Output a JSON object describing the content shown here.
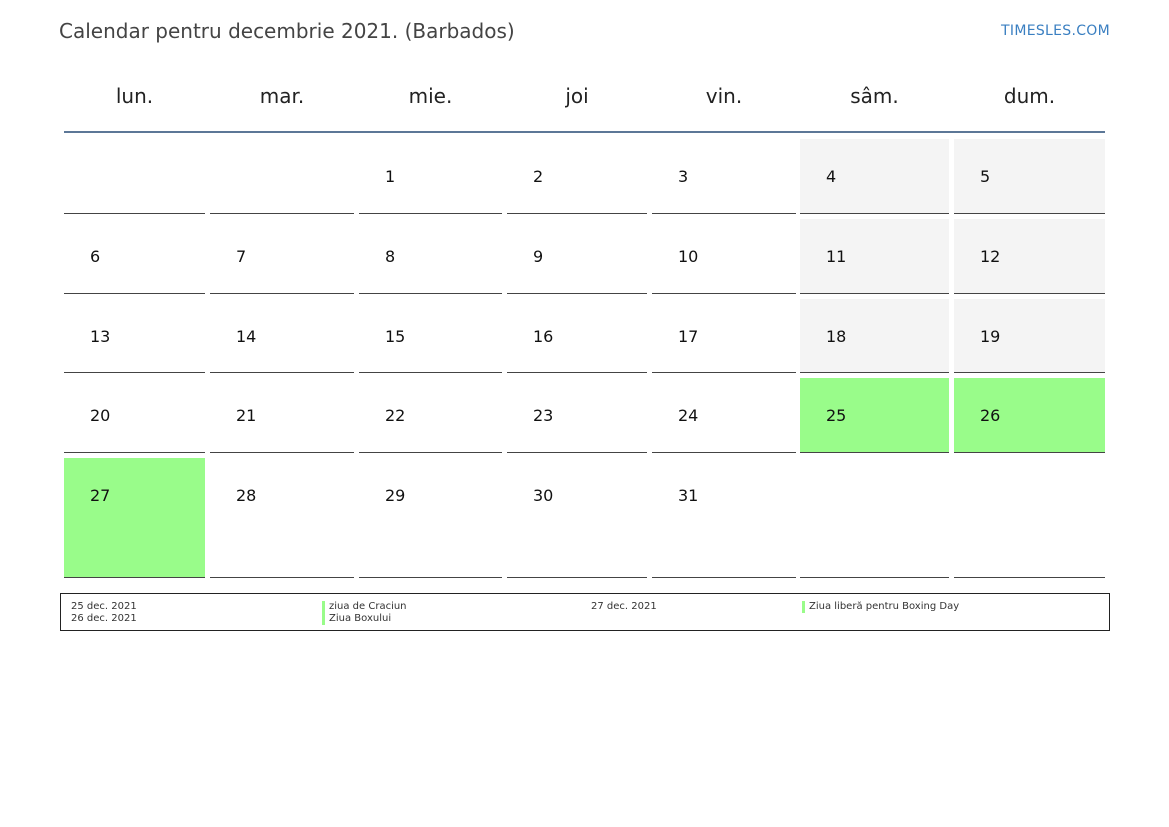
{
  "header": {
    "title": "Calendar pentru decembrie 2021. (Barbados)",
    "brand": "TIMESLES.COM"
  },
  "weekdays": [
    "lun.",
    "mar.",
    "mie.",
    "joi",
    "vin.",
    "sâm.",
    "dum."
  ],
  "weeks": [
    [
      "",
      "",
      "1",
      "2",
      "3",
      "4",
      "5"
    ],
    [
      "6",
      "7",
      "8",
      "9",
      "10",
      "11",
      "12"
    ],
    [
      "13",
      "14",
      "15",
      "16",
      "17",
      "18",
      "19"
    ],
    [
      "20",
      "21",
      "22",
      "23",
      "24",
      "25",
      "26"
    ],
    [
      "27",
      "28",
      "29",
      "30",
      "31",
      "",
      ""
    ]
  ],
  "colors": {
    "holiday": "#99fc8a",
    "weekend": "#f4f4f4",
    "header_rule": "#5c7797",
    "brand": "#3a7fc1"
  },
  "holidays": [
    {
      "date": "25 dec. 2021",
      "name": "ziua de Craciun"
    },
    {
      "date": "26 dec. 2021",
      "name": "Ziua Boxului"
    },
    {
      "date": "27 dec. 2021",
      "name": "Ziua liberă pentru Boxing Day"
    }
  ]
}
